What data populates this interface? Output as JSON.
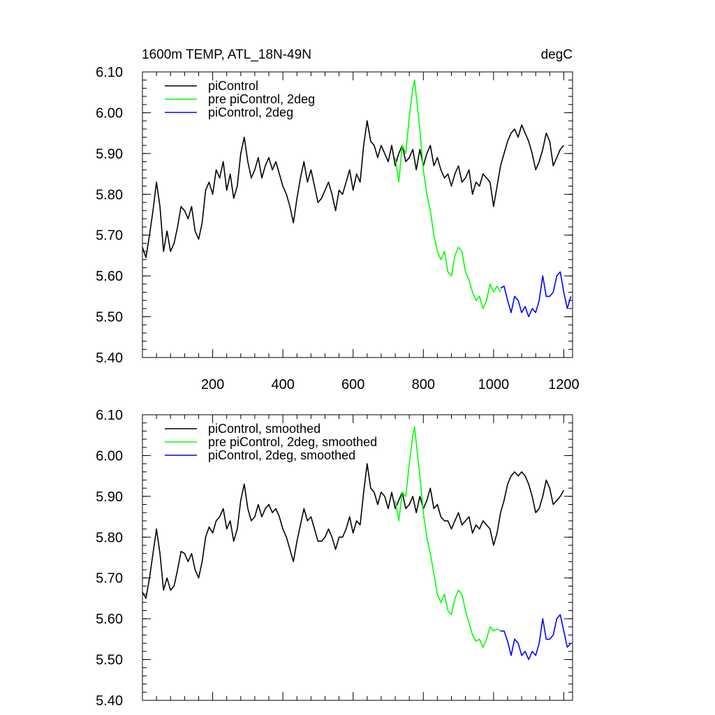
{
  "colors": {
    "black": "#000000",
    "green": "#00ff00",
    "blue": "#0000ff"
  },
  "chart_data": [
    {
      "type": "line",
      "title": "1600m TEMP, ATL_18N-49N",
      "units": "degC",
      "xlabel": "",
      "ylabel": "",
      "xlim": [
        0,
        1225
      ],
      "ylim": [
        5.4,
        6.1
      ],
      "xticks": [
        200,
        400,
        600,
        800,
        1000,
        1200
      ],
      "xtick_labels": [
        "200",
        "400",
        "600",
        "800",
        "1000",
        "1200"
      ],
      "yticks": [
        5.4,
        5.5,
        5.6,
        5.7,
        5.8,
        5.9,
        6.0,
        6.1
      ],
      "ytick_labels": [
        "5.40",
        "5.50",
        "5.60",
        "5.70",
        "5.80",
        "5.90",
        "6.00",
        "6.10"
      ],
      "legend_position": "top-left",
      "series": [
        {
          "name": "piControl",
          "color": "#000000",
          "x": [
            0,
            10,
            20,
            30,
            40,
            50,
            60,
            70,
            80,
            90,
            100,
            110,
            120,
            130,
            140,
            150,
            160,
            170,
            180,
            190,
            200,
            210,
            220,
            230,
            240,
            250,
            260,
            270,
            280,
            290,
            300,
            310,
            320,
            330,
            340,
            350,
            360,
            370,
            380,
            390,
            400,
            410,
            420,
            430,
            440,
            450,
            460,
            470,
            480,
            490,
            500,
            510,
            520,
            530,
            540,
            550,
            560,
            570,
            580,
            590,
            600,
            610,
            620,
            630,
            640,
            650,
            660,
            670,
            680,
            690,
            700,
            710,
            720,
            730,
            740,
            750,
            760,
            770,
            780,
            790,
            800,
            810,
            820,
            830,
            840,
            850,
            860,
            870,
            880,
            890,
            900,
            910,
            920,
            930,
            940,
            950,
            960,
            970,
            980,
            990,
            1000,
            1010,
            1020,
            1030,
            1040,
            1050,
            1060,
            1070,
            1080,
            1090,
            1100,
            1110,
            1120,
            1130,
            1140,
            1150,
            1160,
            1170,
            1180,
            1190,
            1200
          ],
          "values": [
            5.67,
            5.645,
            5.7,
            5.76,
            5.83,
            5.77,
            5.66,
            5.71,
            5.66,
            5.68,
            5.72,
            5.77,
            5.76,
            5.74,
            5.77,
            5.71,
            5.69,
            5.73,
            5.81,
            5.83,
            5.8,
            5.86,
            5.84,
            5.88,
            5.81,
            5.85,
            5.79,
            5.82,
            5.9,
            5.94,
            5.88,
            5.84,
            5.86,
            5.89,
            5.84,
            5.87,
            5.89,
            5.86,
            5.88,
            5.85,
            5.82,
            5.8,
            5.77,
            5.73,
            5.79,
            5.84,
            5.88,
            5.83,
            5.86,
            5.82,
            5.78,
            5.79,
            5.81,
            5.83,
            5.8,
            5.76,
            5.81,
            5.8,
            5.83,
            5.86,
            5.81,
            5.85,
            5.83,
            5.92,
            5.98,
            5.93,
            5.92,
            5.89,
            5.92,
            5.9,
            5.88,
            5.92,
            5.87,
            5.9,
            5.92,
            5.88,
            5.89,
            5.91,
            5.86,
            5.91,
            5.87,
            5.9,
            5.92,
            5.87,
            5.89,
            5.86,
            5.84,
            5.85,
            5.82,
            5.85,
            5.87,
            5.83,
            5.84,
            5.86,
            5.8,
            5.83,
            5.82,
            5.85,
            5.84,
            5.83,
            5.77,
            5.82,
            5.87,
            5.9,
            5.93,
            5.95,
            5.96,
            5.94,
            5.97,
            5.95,
            5.93,
            5.9,
            5.86,
            5.88,
            5.91,
            5.95,
            5.93,
            5.87,
            5.89,
            5.91,
            5.92
          ]
        },
        {
          "name": "pre piControl, 2deg",
          "color": "#00ff00",
          "x": [
            720,
            730,
            740,
            750,
            760,
            770,
            775,
            780,
            790,
            800,
            810,
            820,
            830,
            840,
            850,
            860,
            870,
            880,
            890,
            900,
            910,
            920,
            930,
            940,
            950,
            960,
            970,
            980,
            990,
            1000,
            1010,
            1020
          ],
          "values": [
            5.89,
            5.83,
            5.92,
            5.9,
            5.99,
            6.06,
            6.08,
            6.04,
            5.96,
            5.86,
            5.8,
            5.76,
            5.7,
            5.66,
            5.64,
            5.66,
            5.61,
            5.6,
            5.65,
            5.67,
            5.66,
            5.61,
            5.59,
            5.56,
            5.54,
            5.55,
            5.52,
            5.54,
            5.58,
            5.56,
            5.575,
            5.56
          ]
        },
        {
          "name": "piControl, 2deg",
          "color": "#0000ff",
          "x": [
            1020,
            1030,
            1040,
            1050,
            1060,
            1070,
            1080,
            1090,
            1100,
            1110,
            1120,
            1130,
            1140,
            1150,
            1160,
            1170,
            1180,
            1190,
            1200,
            1210,
            1220
          ],
          "values": [
            5.57,
            5.575,
            5.54,
            5.51,
            5.55,
            5.54,
            5.51,
            5.525,
            5.5,
            5.52,
            5.51,
            5.54,
            5.6,
            5.55,
            5.55,
            5.56,
            5.6,
            5.61,
            5.56,
            5.52,
            5.55
          ]
        }
      ]
    },
    {
      "type": "line",
      "title": "",
      "xlabel": "",
      "ylabel": "",
      "xlim": [
        0,
        1225
      ],
      "ylim": [
        5.4,
        6.1
      ],
      "xticks": [
        200,
        400,
        600,
        800,
        1000,
        1200
      ],
      "xtick_labels": [],
      "yticks": [
        5.4,
        5.5,
        5.6,
        5.7,
        5.8,
        5.9,
        6.0,
        6.1
      ],
      "ytick_labels": [
        "5.40",
        "5.50",
        "5.60",
        "5.70",
        "5.80",
        "5.90",
        "6.00",
        "6.10"
      ],
      "legend_position": "top-left",
      "series": [
        {
          "name": "piControl, smoothed",
          "color": "#000000",
          "x": [
            0,
            10,
            20,
            30,
            40,
            50,
            60,
            70,
            80,
            90,
            100,
            110,
            120,
            130,
            140,
            150,
            160,
            170,
            180,
            190,
            200,
            210,
            220,
            230,
            240,
            250,
            260,
            270,
            280,
            290,
            300,
            310,
            320,
            330,
            340,
            350,
            360,
            370,
            380,
            390,
            400,
            410,
            420,
            430,
            440,
            450,
            460,
            470,
            480,
            490,
            500,
            510,
            520,
            530,
            540,
            550,
            560,
            570,
            580,
            590,
            600,
            610,
            620,
            630,
            640,
            650,
            660,
            670,
            680,
            690,
            700,
            710,
            720,
            730,
            740,
            750,
            760,
            770,
            780,
            790,
            800,
            810,
            820,
            830,
            840,
            850,
            860,
            870,
            880,
            890,
            900,
            910,
            920,
            930,
            940,
            950,
            960,
            970,
            980,
            990,
            1000,
            1010,
            1020,
            1030,
            1040,
            1050,
            1060,
            1070,
            1080,
            1090,
            1100,
            1110,
            1120,
            1130,
            1140,
            1150,
            1160,
            1170,
            1180,
            1190,
            1200
          ],
          "values": [
            5.665,
            5.65,
            5.7,
            5.76,
            5.82,
            5.76,
            5.67,
            5.7,
            5.67,
            5.68,
            5.72,
            5.765,
            5.76,
            5.74,
            5.76,
            5.72,
            5.7,
            5.74,
            5.8,
            5.825,
            5.81,
            5.84,
            5.85,
            5.87,
            5.82,
            5.84,
            5.79,
            5.82,
            5.89,
            5.93,
            5.87,
            5.84,
            5.85,
            5.88,
            5.85,
            5.87,
            5.88,
            5.86,
            5.87,
            5.85,
            5.82,
            5.8,
            5.77,
            5.74,
            5.79,
            5.83,
            5.87,
            5.84,
            5.85,
            5.82,
            5.79,
            5.79,
            5.8,
            5.82,
            5.8,
            5.77,
            5.8,
            5.8,
            5.82,
            5.85,
            5.81,
            5.84,
            5.83,
            5.91,
            5.98,
            5.92,
            5.91,
            5.88,
            5.91,
            5.9,
            5.87,
            5.91,
            5.87,
            5.89,
            5.91,
            5.87,
            5.88,
            5.9,
            5.86,
            5.9,
            5.87,
            5.89,
            5.92,
            5.87,
            5.88,
            5.85,
            5.84,
            5.84,
            5.82,
            5.84,
            5.86,
            5.83,
            5.84,
            5.85,
            5.81,
            5.83,
            5.82,
            5.84,
            5.83,
            5.82,
            5.78,
            5.81,
            5.86,
            5.89,
            5.93,
            5.95,
            5.96,
            5.95,
            5.96,
            5.95,
            5.93,
            5.9,
            5.86,
            5.87,
            5.9,
            5.94,
            5.92,
            5.88,
            5.89,
            5.9,
            5.915
          ]
        },
        {
          "name": "pre piControl, 2deg, smoothed",
          "color": "#00ff00",
          "x": [
            720,
            730,
            740,
            750,
            760,
            770,
            775,
            780,
            790,
            800,
            810,
            820,
            830,
            840,
            850,
            860,
            870,
            880,
            890,
            900,
            910,
            920,
            930,
            940,
            950,
            960,
            970,
            980,
            990,
            1000,
            1010,
            1020
          ],
          "values": [
            5.89,
            5.84,
            5.91,
            5.9,
            5.98,
            6.05,
            6.07,
            6.03,
            5.95,
            5.86,
            5.8,
            5.76,
            5.71,
            5.66,
            5.64,
            5.66,
            5.62,
            5.61,
            5.65,
            5.67,
            5.66,
            5.62,
            5.59,
            5.56,
            5.545,
            5.55,
            5.53,
            5.55,
            5.58,
            5.57,
            5.575,
            5.57
          ]
        },
        {
          "name": "piControl, 2deg, smoothed",
          "color": "#0000ff",
          "x": [
            1020,
            1030,
            1040,
            1050,
            1060,
            1070,
            1080,
            1090,
            1100,
            1110,
            1120,
            1130,
            1140,
            1150,
            1160,
            1170,
            1180,
            1190,
            1200,
            1210,
            1220
          ],
          "values": [
            5.57,
            5.57,
            5.545,
            5.51,
            5.55,
            5.54,
            5.51,
            5.52,
            5.5,
            5.52,
            5.51,
            5.54,
            5.6,
            5.55,
            5.55,
            5.56,
            5.6,
            5.61,
            5.57,
            5.53,
            5.54
          ]
        }
      ]
    }
  ]
}
